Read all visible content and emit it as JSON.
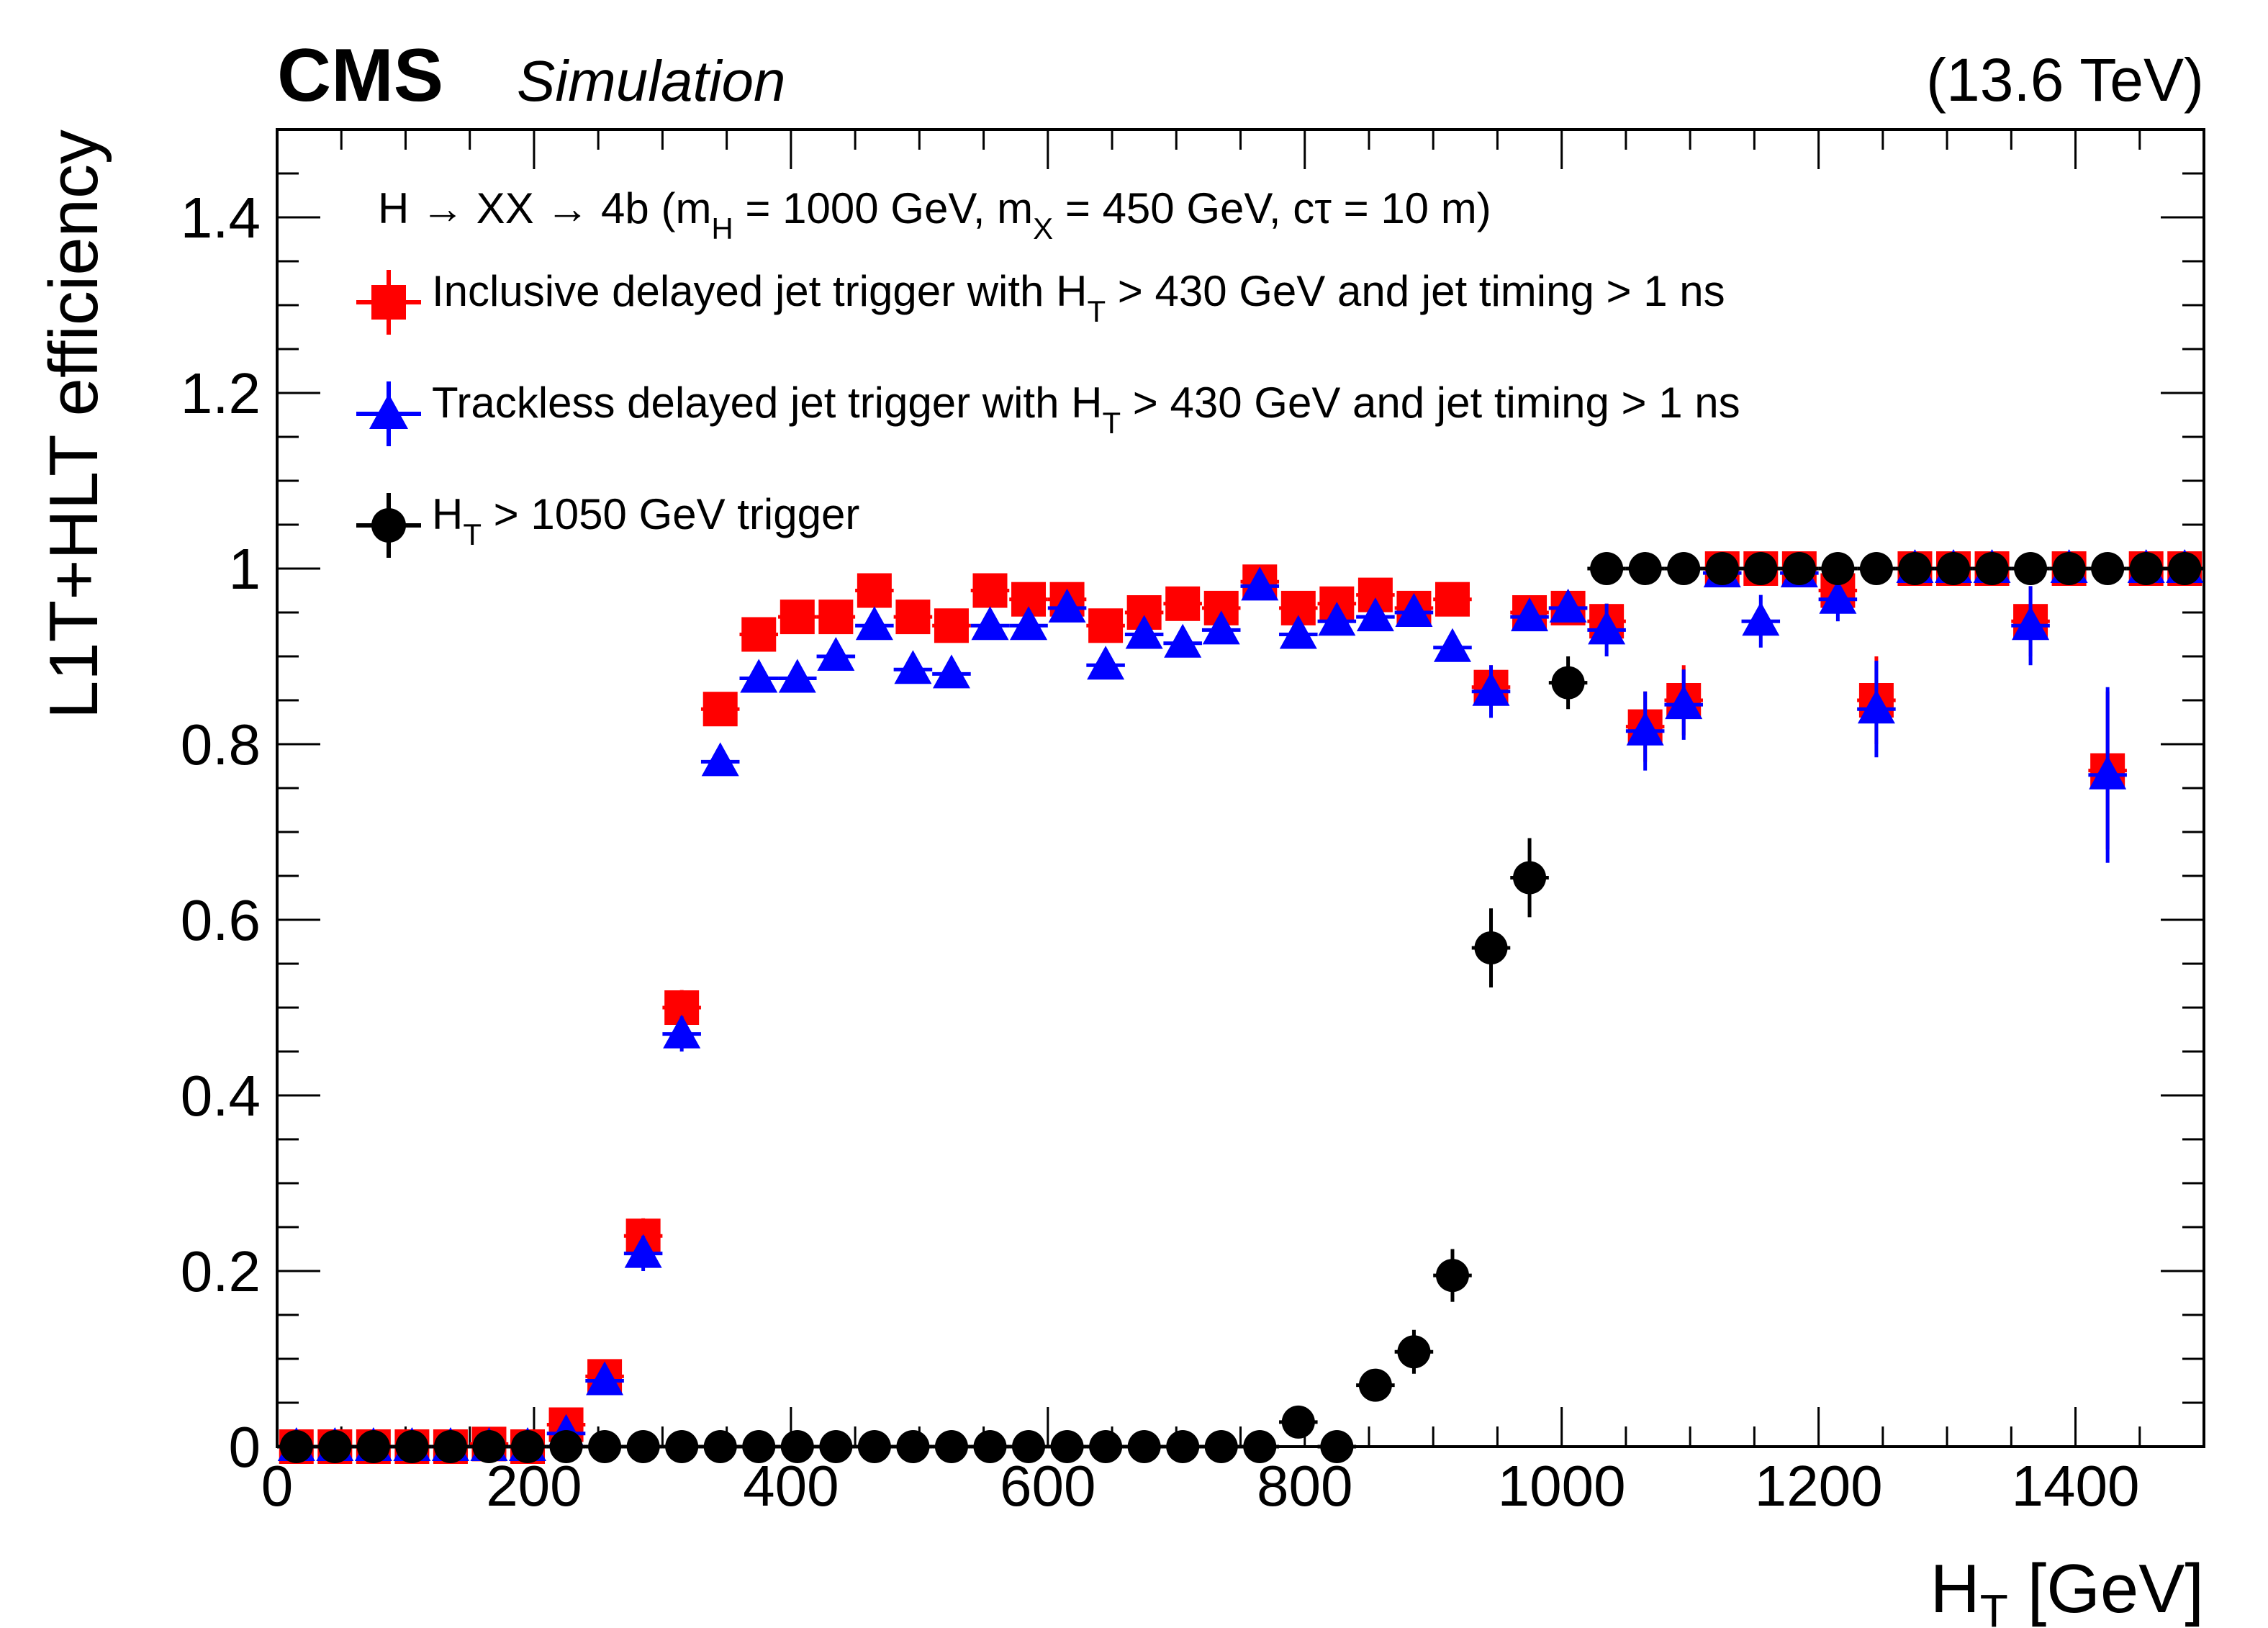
{
  "header": {
    "experiment": "CMS",
    "status": "Simulation",
    "energy": "(13.6 TeV)"
  },
  "legend_header": {
    "process": "H → XX  → 4b  (m",
    "mh_sub": "H",
    "mh_val": " = 1000 GeV,  m",
    "mx_sub": "X",
    "mx_val": " = 450 GeV,  cτ = 10 m)"
  },
  "legend": [
    {
      "pre": "Inclusive delayed jet trigger with H",
      "sub": "T",
      "post": " > 430 GeV and jet timing > 1 ns"
    },
    {
      "pre": "Trackless delayed jet trigger with H",
      "sub": "T",
      "post": " > 430 GeV and jet timing > 1 ns"
    },
    {
      "pre": "H",
      "sub": "T",
      "post": " > 1050 GeV trigger"
    }
  ],
  "colors": {
    "inclusive": "#ff0000",
    "trackless": "#0000ff",
    "ht": "#000000"
  },
  "chart_data": {
    "type": "scatter",
    "title": "",
    "xlabel": "H",
    "xlabel_sub": "T",
    "xlabel_unit": " [GeV]",
    "ylabel": "L1T+HLT efficiency",
    "xlim": [
      0,
      1500
    ],
    "ylim": [
      0,
      1.5
    ],
    "x_ticks": [
      0,
      200,
      400,
      600,
      800,
      1000,
      1200,
      1400
    ],
    "x_tick_labels": [
      "0",
      "200",
      "400",
      "600",
      "800",
      "1000",
      "1200",
      "1400"
    ],
    "y_ticks": [
      0,
      0.2,
      0.4,
      0.6,
      0.8,
      1,
      1.2,
      1.4
    ],
    "y_tick_labels": [
      "0",
      "0.2",
      "0.4",
      "0.6",
      "0.8",
      "1",
      "1.2",
      "1.4"
    ],
    "grid": false,
    "legend_position": "top-left",
    "series": [
      {
        "name": "Inclusive delayed jet trigger with HT > 430 GeV and jet timing > 1 ns",
        "marker": "square",
        "color": "#ff0000",
        "x": [
          15,
          45,
          75,
          105,
          135,
          165,
          195,
          225,
          255,
          285,
          315,
          345,
          375,
          405,
          435,
          465,
          495,
          525,
          555,
          585,
          615,
          645,
          675,
          705,
          735,
          765,
          795,
          825,
          855,
          885,
          915,
          945,
          975,
          1005,
          1035,
          1065,
          1095,
          1125,
          1155,
          1185,
          1215,
          1245,
          1275,
          1305,
          1335,
          1365,
          1395,
          1425,
          1455,
          1485
        ],
        "y": [
          0,
          0,
          0,
          0,
          0,
          0.003,
          0,
          0.025,
          0.08,
          0.24,
          0.5,
          0.84,
          0.925,
          0.945,
          0.945,
          0.975,
          0.945,
          0.935,
          0.975,
          0.965,
          0.965,
          0.935,
          0.95,
          0.96,
          0.955,
          0.985,
          0.955,
          0.96,
          0.97,
          0.955,
          0.965,
          0.865,
          0.95,
          0.955,
          0.94,
          0.82,
          0.85,
          1,
          1,
          1,
          0.975,
          0.85,
          1,
          1,
          1,
          0.94,
          1,
          0.77,
          1,
          1
        ],
        "yerr": [
          0,
          0,
          0,
          0,
          0,
          0.005,
          0,
          0.01,
          0.015,
          0.02,
          0.02,
          0.015,
          0.01,
          0.01,
          0.01,
          0.008,
          0.01,
          0.01,
          0.008,
          0.008,
          0.008,
          0.01,
          0.01,
          0.01,
          0.01,
          0.008,
          0.01,
          0.01,
          0.01,
          0.01,
          0.012,
          0.025,
          0.015,
          0.015,
          0.02,
          0.04,
          0.04,
          0,
          0,
          0,
          0.02,
          0.05,
          0,
          0,
          0,
          0.04,
          0,
          0.09,
          0,
          0
        ]
      },
      {
        "name": "Trackless delayed jet trigger with HT > 430 GeV and jet timing > 1 ns",
        "marker": "triangle",
        "color": "#0000ff",
        "x": [
          15,
          45,
          75,
          105,
          135,
          165,
          195,
          225,
          255,
          285,
          315,
          345,
          375,
          405,
          435,
          465,
          495,
          525,
          555,
          585,
          615,
          645,
          675,
          705,
          735,
          765,
          795,
          825,
          855,
          885,
          915,
          945,
          975,
          1005,
          1035,
          1065,
          1095,
          1125,
          1155,
          1185,
          1215,
          1245,
          1275,
          1305,
          1335,
          1365,
          1395,
          1425,
          1455,
          1485
        ],
        "y": [
          0,
          0,
          0,
          0,
          0,
          0,
          0,
          0.015,
          0.075,
          0.22,
          0.47,
          0.78,
          0.875,
          0.875,
          0.9,
          0.935,
          0.885,
          0.88,
          0.935,
          0.935,
          0.955,
          0.89,
          0.925,
          0.915,
          0.93,
          0.98,
          0.925,
          0.94,
          0.945,
          0.95,
          0.91,
          0.86,
          0.945,
          0.955,
          0.93,
          0.815,
          0.845,
          0.995,
          0.94,
          0.995,
          0.965,
          0.84,
          1,
          1,
          1,
          0.935,
          1,
          0.765,
          1,
          1
        ],
        "yerr": [
          0,
          0,
          0,
          0,
          0,
          0,
          0,
          0.01,
          0.015,
          0.02,
          0.02,
          0.015,
          0.012,
          0.012,
          0.012,
          0.01,
          0.012,
          0.012,
          0.01,
          0.01,
          0.008,
          0.012,
          0.012,
          0.012,
          0.012,
          0.01,
          0.012,
          0.012,
          0.012,
          0.012,
          0.015,
          0.03,
          0.015,
          0.015,
          0.03,
          0.045,
          0.04,
          0.005,
          0.03,
          0.005,
          0.025,
          0.055,
          0,
          0,
          0,
          0.045,
          0,
          0.1,
          0,
          0
        ]
      },
      {
        "name": "HT > 1050 GeV trigger",
        "marker": "circle",
        "color": "#000000",
        "x": [
          15,
          45,
          75,
          105,
          135,
          165,
          195,
          225,
          255,
          285,
          315,
          345,
          375,
          405,
          435,
          465,
          495,
          525,
          555,
          585,
          615,
          645,
          675,
          705,
          735,
          765,
          795,
          825,
          855,
          885,
          915,
          945,
          975,
          1005,
          1035,
          1065,
          1095,
          1125,
          1155,
          1185,
          1215,
          1245,
          1275,
          1305,
          1335,
          1365,
          1395,
          1425,
          1455,
          1485
        ],
        "y": [
          0,
          0,
          0,
          0,
          0,
          0,
          0,
          0,
          0,
          0,
          0,
          0,
          0,
          0,
          0,
          0,
          0,
          0,
          0,
          0,
          0,
          0,
          0,
          0,
          0,
          0,
          0.028,
          0,
          0.07,
          0.108,
          0.195,
          0.568,
          0.648,
          0.87,
          1,
          1,
          1,
          1,
          1,
          1,
          1,
          1,
          1,
          1,
          1,
          1,
          1,
          1,
          1,
          1
        ],
        "yerr": [
          0,
          0,
          0,
          0,
          0,
          0,
          0,
          0,
          0,
          0,
          0,
          0,
          0,
          0,
          0,
          0,
          0,
          0,
          0,
          0,
          0,
          0,
          0,
          0,
          0,
          0,
          0.01,
          0,
          0.012,
          0.025,
          0.03,
          0.045,
          0.045,
          0.03,
          0,
          0,
          0,
          0,
          0,
          0,
          0,
          0,
          0,
          0,
          0,
          0,
          0,
          0,
          0,
          0
        ]
      }
    ]
  }
}
